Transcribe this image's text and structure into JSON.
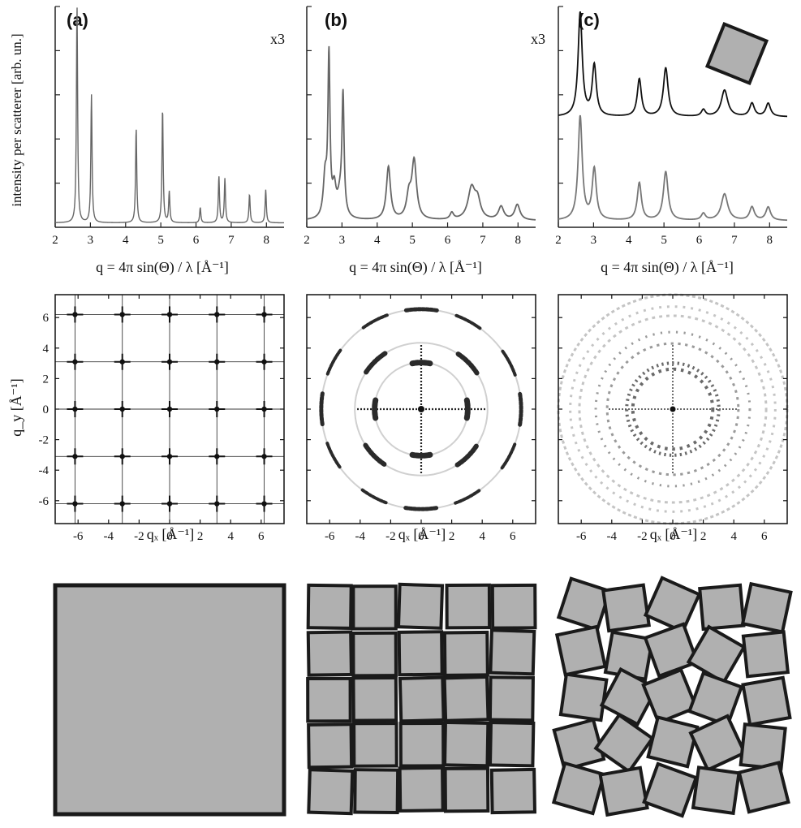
{
  "figure": {
    "colors": {
      "line": "#666666",
      "line_dark": "#111111",
      "axis": "#222222",
      "tile_fill": "#b0b0b0",
      "tile_stroke": "#1a1a1a",
      "map_ink": "#111111"
    }
  },
  "chart_data": [
    {
      "id": "a",
      "panel_label": "(a)",
      "type": "line",
      "xlabel": "q = 4π sin(Θ) / λ [Å⁻¹]",
      "ylabel": "intensity per scatterer [arb. un.]",
      "xlim": [
        2,
        8.5
      ],
      "xticks": [
        2,
        3,
        4,
        5,
        6,
        7,
        8
      ],
      "ylim": [
        0,
        1
      ],
      "yticks": [
        0.2,
        0.4,
        0.6,
        0.8,
        1.0
      ],
      "ytick_labels": "none",
      "grid": false,
      "series": [
        {
          "color": "#666666",
          "peaks": [
            [
              2.62,
              1.0,
              0.02
            ],
            [
              3.03,
              0.58,
              0.02
            ],
            [
              4.3,
              0.43,
              0.02
            ],
            [
              5.05,
              0.52,
              0.02
            ],
            [
              5.24,
              0.14,
              0.02
            ],
            [
              6.12,
              0.07,
              0.02
            ],
            [
              6.65,
              0.21,
              0.02
            ],
            [
              6.82,
              0.2,
              0.02
            ],
            [
              7.52,
              0.13,
              0.02
            ],
            [
              7.98,
              0.15,
              0.02
            ]
          ],
          "baseline": 0.02
        }
      ]
    },
    {
      "id": "b",
      "panel_label": "(b)",
      "type": "line",
      "annotation": "x3",
      "xlabel": "q = 4π sin(Θ) / λ [Å⁻¹]",
      "xlim": [
        2,
        8.5
      ],
      "xticks": [
        2,
        3,
        4,
        5,
        6,
        7,
        8
      ],
      "ylim": [
        0,
        1
      ],
      "yticks": [
        0.2,
        0.4,
        0.6,
        0.8,
        1.0
      ],
      "ytick_labels": "none",
      "grid": false,
      "series": [
        {
          "color": "#666666",
          "peaks": [
            [
              2.52,
              0.18,
              0.06
            ],
            [
              2.63,
              0.72,
              0.035
            ],
            [
              2.78,
              0.12,
              0.06
            ],
            [
              3.03,
              0.52,
              0.035
            ],
            [
              2.95,
              0.1,
              0.1
            ],
            [
              4.32,
              0.24,
              0.07
            ],
            [
              5.05,
              0.26,
              0.08
            ],
            [
              4.9,
              0.1,
              0.08
            ],
            [
              6.12,
              0.03,
              0.06
            ],
            [
              6.68,
              0.14,
              0.12
            ],
            [
              6.85,
              0.08,
              0.1
            ],
            [
              7.52,
              0.06,
              0.09
            ],
            [
              7.98,
              0.07,
              0.09
            ]
          ],
          "baseline": 0.03
        }
      ]
    },
    {
      "id": "c",
      "panel_label": "(c)",
      "type": "line",
      "annotation": "x3",
      "xlabel": "q = 4π sin(Θ) / λ [Å⁻¹]",
      "xlim": [
        2,
        8.5
      ],
      "xticks": [
        2,
        3,
        4,
        5,
        6,
        7,
        8
      ],
      "ylim": [
        0,
        1
      ],
      "yticks": [
        0.2,
        0.4,
        0.6,
        0.8,
        1.0
      ],
      "ytick_labels": "none",
      "grid": false,
      "inset": "single rotated square",
      "series": [
        {
          "color": "#111111",
          "peaks": [
            [
              2.62,
              0.47,
              0.07
            ],
            [
              3.02,
              0.23,
              0.07
            ],
            [
              4.3,
              0.17,
              0.07
            ],
            [
              5.05,
              0.22,
              0.08
            ],
            [
              6.12,
              0.03,
              0.07
            ],
            [
              6.72,
              0.12,
              0.11
            ],
            [
              7.5,
              0.06,
              0.08
            ],
            [
              7.96,
              0.06,
              0.08
            ]
          ],
          "baseline": 0.5
        },
        {
          "color": "#777777",
          "peaks": [
            [
              2.62,
              0.47,
              0.07
            ],
            [
              3.02,
              0.23,
              0.07
            ],
            [
              4.3,
              0.17,
              0.07
            ],
            [
              5.05,
              0.22,
              0.08
            ],
            [
              6.12,
              0.03,
              0.07
            ],
            [
              6.72,
              0.12,
              0.11
            ],
            [
              7.5,
              0.06,
              0.08
            ],
            [
              7.96,
              0.06,
              0.08
            ]
          ],
          "baseline": 0.03
        }
      ]
    },
    {
      "id": "map-a",
      "type": "heatmap",
      "description_kind": "square reciprocal lattice",
      "xlabel": "qₓ [Å⁻¹]",
      "ylabel": "q_y [Å⁻¹]",
      "xlim": [
        -7.5,
        7.5
      ],
      "ylim": [
        -7.5,
        7.5
      ],
      "xticks": [
        -6,
        -4,
        -2,
        0,
        2,
        4,
        6
      ],
      "yticks": [
        -6,
        -4,
        -2,
        0,
        2,
        4,
        6
      ],
      "lattice_spacing": 3.1,
      "peak_positions": [
        -6.2,
        -3.1,
        0,
        3.1,
        6.2
      ]
    },
    {
      "id": "map-b",
      "type": "heatmap",
      "description_kind": "arcs on rings",
      "xlabel": "qₓ [Å⁻¹]",
      "xlim": [
        -7.5,
        7.5
      ],
      "ylim": [
        -7.5,
        7.5
      ],
      "xticks": [
        -6,
        -4,
        -2,
        0,
        2,
        4,
        6
      ],
      "ring_radii": [
        3.05,
        4.35,
        6.55
      ]
    },
    {
      "id": "map-c",
      "type": "heatmap",
      "description_kind": "powder rings",
      "xlabel": "qₓ [Å⁻¹]",
      "xlim": [
        -7.5,
        7.5
      ],
      "ylim": [
        -7.5,
        7.5
      ],
      "xticks": [
        -6,
        -4,
        -2,
        0,
        2,
        4,
        6
      ],
      "ring_radii": [
        2.62,
        3.02,
        4.3,
        5.05,
        6.12,
        6.72,
        7.5
      ]
    }
  ]
}
